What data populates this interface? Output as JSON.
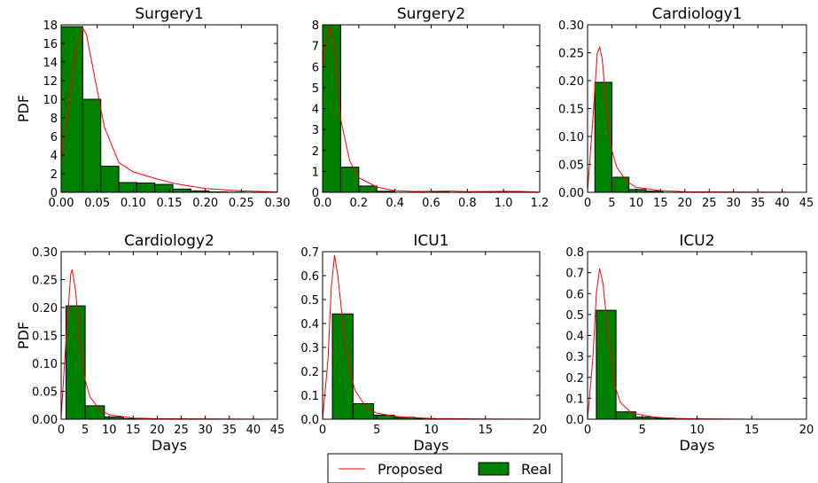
{
  "legend": {
    "proposed_label": "Proposed",
    "real_label": "Real"
  },
  "colors": {
    "proposed": "#ff0000",
    "real": "#008000"
  },
  "chart_data": [
    {
      "type": "bar",
      "title": "Surgery1",
      "xlabel": "",
      "ylabel": "PDF",
      "xlim": [
        0,
        0.3
      ],
      "ylim": [
        0,
        18
      ],
      "xticks": [
        "0.00",
        "0.05",
        "0.10",
        "0.15",
        "0.20",
        "0.25",
        "0.30"
      ],
      "yticks": [
        "0",
        "2",
        "4",
        "6",
        "8",
        "10",
        "12",
        "14",
        "16",
        "18"
      ],
      "bins": [
        [
          0.0,
          0.03,
          17.8
        ],
        [
          0.03,
          0.055,
          10.0
        ],
        [
          0.055,
          0.08,
          2.8
        ],
        [
          0.08,
          0.105,
          1.05
        ],
        [
          0.105,
          0.13,
          1.0
        ],
        [
          0.13,
          0.155,
          0.85
        ],
        [
          0.155,
          0.18,
          0.35
        ],
        [
          0.18,
          0.205,
          0.15
        ],
        [
          0.205,
          0.23,
          0.05
        ],
        [
          0.23,
          0.255,
          0.02
        ]
      ],
      "curve": [
        [
          0.0,
          3.5
        ],
        [
          0.01,
          9
        ],
        [
          0.02,
          15
        ],
        [
          0.03,
          17.6
        ],
        [
          0.035,
          17.0
        ],
        [
          0.045,
          13
        ],
        [
          0.06,
          7
        ],
        [
          0.08,
          3.2
        ],
        [
          0.1,
          2.2
        ],
        [
          0.13,
          1.5
        ],
        [
          0.16,
          0.9
        ],
        [
          0.2,
          0.4
        ],
        [
          0.25,
          0.15
        ],
        [
          0.3,
          0.05
        ]
      ],
      "legend": "bottom-center"
    },
    {
      "type": "bar",
      "title": "Surgery2",
      "xlabel": "",
      "ylabel": "",
      "xlim": [
        0,
        1.2
      ],
      "ylim": [
        0,
        8
      ],
      "xticks": [
        "0.0",
        "0.2",
        "0.4",
        "0.6",
        "0.8",
        "1.0",
        "1.2"
      ],
      "yticks": [
        "0",
        "1",
        "2",
        "3",
        "4",
        "5",
        "6",
        "7",
        "8"
      ],
      "bins": [
        [
          0.0,
          0.1,
          8.0
        ],
        [
          0.1,
          0.2,
          1.2
        ],
        [
          0.2,
          0.3,
          0.3
        ],
        [
          0.3,
          0.4,
          0.05
        ],
        [
          0.6,
          0.7,
          0.03
        ],
        [
          1.0,
          1.1,
          0.03
        ]
      ],
      "curve": [
        [
          0.0,
          5.8
        ],
        [
          0.02,
          7.2
        ],
        [
          0.04,
          7.9
        ],
        [
          0.06,
          7.3
        ],
        [
          0.1,
          3.5
        ],
        [
          0.15,
          1.5
        ],
        [
          0.2,
          0.7
        ],
        [
          0.3,
          0.25
        ],
        [
          0.4,
          0.08
        ],
        [
          0.5,
          0.04
        ],
        [
          0.6,
          0.05
        ],
        [
          0.7,
          0.06
        ],
        [
          0.8,
          0.03
        ],
        [
          1.0,
          0.05
        ],
        [
          1.1,
          0.04
        ],
        [
          1.2,
          0.01
        ]
      ],
      "legend": "bottom-center"
    },
    {
      "type": "bar",
      "title": "Cardiology1",
      "xlabel": "",
      "ylabel": "",
      "xlim": [
        0,
        45
      ],
      "ylim": [
        0,
        0.3
      ],
      "xticks": [
        "0",
        "5",
        "10",
        "15",
        "20",
        "25",
        "30",
        "35",
        "40",
        "45"
      ],
      "yticks": [
        "0.00",
        "0.05",
        "0.10",
        "0.15",
        "0.20",
        "0.25",
        "0.30"
      ],
      "bins": [
        [
          1.5,
          5.0,
          0.197
        ],
        [
          5.0,
          8.5,
          0.027
        ],
        [
          8.5,
          12.0,
          0.005
        ],
        [
          12.0,
          15.5,
          0.002
        ]
      ],
      "curve": [
        [
          0.0,
          0.002
        ],
        [
          1.0,
          0.12
        ],
        [
          2.0,
          0.25
        ],
        [
          2.5,
          0.26
        ],
        [
          3.0,
          0.24
        ],
        [
          4.0,
          0.14
        ],
        [
          5.0,
          0.075
        ],
        [
          6.0,
          0.045
        ],
        [
          8.0,
          0.02
        ],
        [
          10.0,
          0.009
        ],
        [
          15.0,
          0.003
        ],
        [
          20.0,
          0.001
        ],
        [
          45.0,
          0.0
        ]
      ],
      "legend": "bottom-center"
    },
    {
      "type": "bar",
      "title": "Cardiology2",
      "xlabel": "Days",
      "ylabel": "PDF",
      "xlim": [
        0,
        45
      ],
      "ylim": [
        0,
        0.3
      ],
      "xticks": [
        "0",
        "5",
        "10",
        "15",
        "20",
        "25",
        "30",
        "35",
        "40",
        "45"
      ],
      "yticks": [
        "0.00",
        "0.05",
        "0.10",
        "0.15",
        "0.20",
        "0.25",
        "0.30"
      ],
      "bins": [
        [
          1.0,
          5.0,
          0.203
        ],
        [
          5.0,
          9.0,
          0.024
        ],
        [
          9.0,
          13.0,
          0.004
        ],
        [
          13.0,
          17.0,
          0.001
        ]
      ],
      "curve": [
        [
          0.0,
          0.003
        ],
        [
          1.0,
          0.14
        ],
        [
          2.0,
          0.26
        ],
        [
          2.3,
          0.268
        ],
        [
          3.0,
          0.23
        ],
        [
          4.0,
          0.13
        ],
        [
          5.0,
          0.07
        ],
        [
          6.0,
          0.04
        ],
        [
          8.0,
          0.017
        ],
        [
          10.0,
          0.008
        ],
        [
          15.0,
          0.002
        ],
        [
          20.0,
          0.001
        ],
        [
          45.0,
          0.0
        ]
      ],
      "legend": "bottom-center"
    },
    {
      "type": "bar",
      "title": "ICU1",
      "xlabel": "Days",
      "ylabel": "",
      "xlim": [
        0,
        20
      ],
      "ylim": [
        0,
        0.7
      ],
      "xticks": [
        "0",
        "5",
        "10",
        "15",
        "20"
      ],
      "yticks": [
        "0.0",
        "0.1",
        "0.2",
        "0.3",
        "0.4",
        "0.5",
        "0.6",
        "0.7"
      ],
      "bins": [
        [
          0.9,
          2.8,
          0.44
        ],
        [
          2.8,
          4.7,
          0.065
        ],
        [
          4.7,
          6.6,
          0.017
        ],
        [
          6.6,
          8.5,
          0.008
        ],
        [
          8.5,
          10.4,
          0.003
        ]
      ],
      "curve": [
        [
          0.0,
          0.0
        ],
        [
          0.5,
          0.25
        ],
        [
          0.8,
          0.55
        ],
        [
          1.1,
          0.685
        ],
        [
          1.4,
          0.6
        ],
        [
          2.0,
          0.35
        ],
        [
          2.5,
          0.2
        ],
        [
          3.0,
          0.12
        ],
        [
          4.0,
          0.05
        ],
        [
          5.0,
          0.025
        ],
        [
          7.0,
          0.01
        ],
        [
          10.0,
          0.003
        ],
        [
          15.0,
          0.001
        ],
        [
          20.0,
          0.0
        ]
      ],
      "legend": "bottom-center"
    },
    {
      "type": "bar",
      "title": "ICU2",
      "xlabel": "Days",
      "ylabel": "",
      "xlim": [
        0,
        20
      ],
      "ylim": [
        0,
        0.8
      ],
      "xticks": [
        "0",
        "5",
        "10",
        "15",
        "20"
      ],
      "yticks": [
        "0.0",
        "0.1",
        "0.2",
        "0.3",
        "0.4",
        "0.5",
        "0.6",
        "0.7",
        "0.8"
      ],
      "bins": [
        [
          0.8,
          2.6,
          0.52
        ],
        [
          2.6,
          4.4,
          0.035
        ],
        [
          4.4,
          6.2,
          0.01
        ],
        [
          6.2,
          8.0,
          0.005
        ],
        [
          8.0,
          9.8,
          0.002
        ]
      ],
      "curve": [
        [
          0.0,
          0.0
        ],
        [
          0.5,
          0.3
        ],
        [
          0.8,
          0.6
        ],
        [
          1.1,
          0.72
        ],
        [
          1.4,
          0.65
        ],
        [
          2.0,
          0.35
        ],
        [
          2.5,
          0.16
        ],
        [
          3.0,
          0.08
        ],
        [
          4.0,
          0.03
        ],
        [
          6.0,
          0.01
        ],
        [
          8.0,
          0.004
        ],
        [
          10.0,
          0.002
        ],
        [
          15.0,
          0.0
        ],
        [
          20.0,
          0.0
        ]
      ],
      "legend": "bottom-center"
    }
  ]
}
